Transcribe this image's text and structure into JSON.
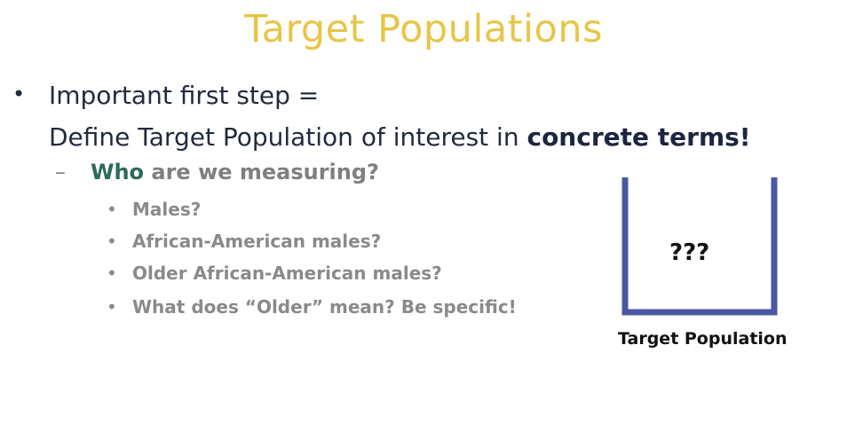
{
  "slide": {
    "title": "Target Populations",
    "bullet_char": "•",
    "main_point": {
      "line1": "Important first step =",
      "line2_prefix": "Define Target Population of interest in ",
      "line2_emphasis": "concrete terms!"
    },
    "sub_point": {
      "dash": "–",
      "emphasis": "Who",
      "rest": " are we measuring?"
    },
    "sub_bullet_char": "•",
    "examples": [
      "Males?",
      "African-American males?",
      "Older African-American males?",
      "What does “Older” mean? Be specific!"
    ],
    "diagram": {
      "inner_label": "???",
      "caption": "Target Population",
      "stroke_color": "#4a57a2"
    }
  }
}
